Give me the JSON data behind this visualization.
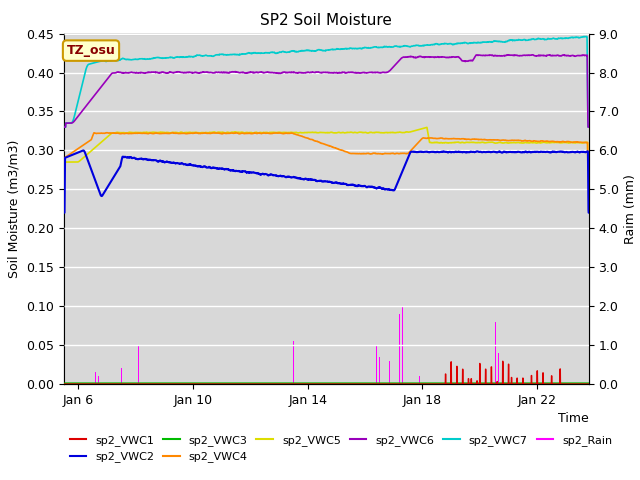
{
  "title": "SP2 Soil Moisture",
  "xlabel": "Time",
  "ylabel_left": "Soil Moisture (m3/m3)",
  "ylabel_right": "Raim (mm)",
  "xlim_days": [
    5.5,
    23.8
  ],
  "ylim_left": [
    0.0,
    0.45
  ],
  "ylim_right": [
    0.0,
    9.0
  ],
  "yticks_left": [
    0.0,
    0.05,
    0.1,
    0.15,
    0.2,
    0.25,
    0.3,
    0.35,
    0.4,
    0.45
  ],
  "yticks_right": [
    0.0,
    1.0,
    2.0,
    3.0,
    4.0,
    5.0,
    6.0,
    7.0,
    8.0,
    9.0
  ],
  "xtick_labels": [
    "Jan 6",
    "Jan 10",
    "Jan 14",
    "Jan 18",
    "Jan 22"
  ],
  "xtick_positions": [
    6,
    10,
    14,
    18,
    22
  ],
  "bg_color_dark": "#d8d8d8",
  "bg_color_light": "#f0f0f0",
  "fig_bg": "#ffffff",
  "annotation_text": "TZ_osu",
  "annotation_bg": "#ffffcc",
  "annotation_border": "#cc9900",
  "annotation_text_color": "#880000",
  "colors": {
    "VWC1": "#dd0000",
    "VWC2": "#0000dd",
    "VWC3": "#00bb00",
    "VWC4": "#ff8800",
    "VWC5": "#dddd00",
    "VWC6": "#9900bb",
    "VWC7": "#00cccc",
    "Rain": "#ff00ff"
  },
  "rain_scale": 20.0,
  "legend_ncol": 6,
  "legend_fontsize": 8
}
